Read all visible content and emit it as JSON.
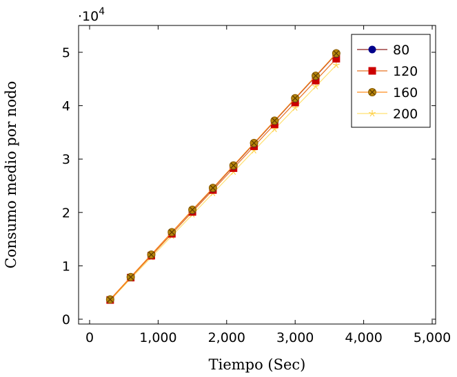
{
  "chart_data": {
    "type": "line",
    "title": "",
    "xlabel": "Tiempo (Sec)",
    "ylabel": "Consumo medio por nodo",
    "y_scale_label": "·10",
    "y_scale_exponent": "4",
    "xlim": [
      0,
      5000
    ],
    "ylim": [
      -0.1,
      5.45
    ],
    "x_ticks": [
      0,
      1000,
      2000,
      3000,
      4000,
      5000
    ],
    "x_tick_labels": [
      "0",
      "1,000",
      "2,000",
      "3,000",
      "4,000",
      "5,000"
    ],
    "y_ticks": [
      0,
      1,
      2,
      3,
      4,
      5
    ],
    "y_tick_labels": [
      "0",
      "1",
      "2",
      "3",
      "4",
      "5"
    ],
    "grid": false,
    "legend_position": "top-right",
    "x": [
      300,
      600,
      900,
      1200,
      1500,
      1800,
      2100,
      2400,
      2700,
      3000,
      3300,
      3600
    ],
    "series": [
      {
        "name": "80",
        "color": "#8b1a1a",
        "marker": "circle",
        "marker_fill": "#00008b",
        "values": [
          0.37,
          0.79,
          1.21,
          1.63,
          2.04,
          2.45,
          2.87,
          3.29,
          3.71,
          4.13,
          4.55,
          4.97
        ]
      },
      {
        "name": "120",
        "color": "#e87020",
        "marker": "square",
        "marker_fill": "#cc0000",
        "values": [
          0.36,
          0.78,
          1.19,
          1.6,
          2.01,
          2.42,
          2.83,
          3.24,
          3.65,
          4.06,
          4.47,
          4.88
        ]
      },
      {
        "name": "160",
        "color": "#ff8c1a",
        "marker": "otimes",
        "marker_fill": "#b8860b",
        "values": [
          0.37,
          0.79,
          1.21,
          1.63,
          2.05,
          2.46,
          2.88,
          3.3,
          3.72,
          4.14,
          4.56,
          4.98
        ]
      },
      {
        "name": "200",
        "color": "#ffe070",
        "marker": "star",
        "marker_fill": "#ffd24d",
        "values": [
          0.35,
          0.76,
          1.16,
          1.56,
          1.96,
          2.36,
          2.76,
          3.16,
          3.56,
          3.96,
          4.36,
          4.76
        ]
      }
    ]
  }
}
